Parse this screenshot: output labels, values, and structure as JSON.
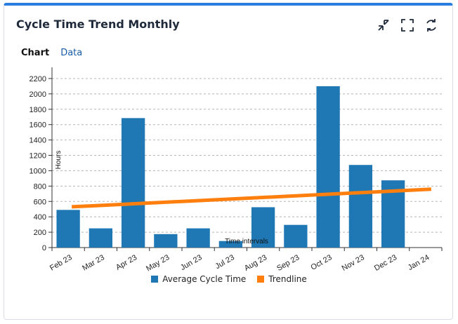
{
  "header": {
    "title": "Cycle Time Trend Monthly",
    "icons": [
      "collapse-icon",
      "fullscreen-icon",
      "refresh-icon"
    ]
  },
  "tabs": [
    {
      "label": "Chart",
      "active": true
    },
    {
      "label": "Data",
      "active": false
    }
  ],
  "colors": {
    "bar": "#1f77b4",
    "trend": "#ff7f0e",
    "accent": "#2b7de0"
  },
  "chart_data": {
    "type": "bar",
    "categories": [
      "Feb 23",
      "Mar 23",
      "Apr 23",
      "May 23",
      "Jun 23",
      "Jul 23",
      "Aug 23",
      "Sep 23",
      "Oct 23",
      "Nov 23",
      "Dec 23",
      "Jan 24"
    ],
    "series": [
      {
        "name": "Average Cycle Time",
        "type": "bar",
        "values": [
          490,
          250,
          1685,
          175,
          250,
          85,
          525,
          295,
          2100,
          1075,
          875,
          0
        ]
      },
      {
        "name": "Trendline",
        "type": "line",
        "values": [
          530,
          550,
          570,
          590,
          610,
          630,
          650,
          670,
          690,
          710,
          735,
          760
        ]
      }
    ],
    "ylabel": "Hours",
    "xlabel": "Time intervals",
    "ylim": [
      0,
      2300
    ],
    "yticks": [
      0,
      200,
      400,
      600,
      800,
      1000,
      1200,
      1400,
      1600,
      1800,
      2000,
      2200
    ],
    "grid": true,
    "legend": "bottom"
  }
}
